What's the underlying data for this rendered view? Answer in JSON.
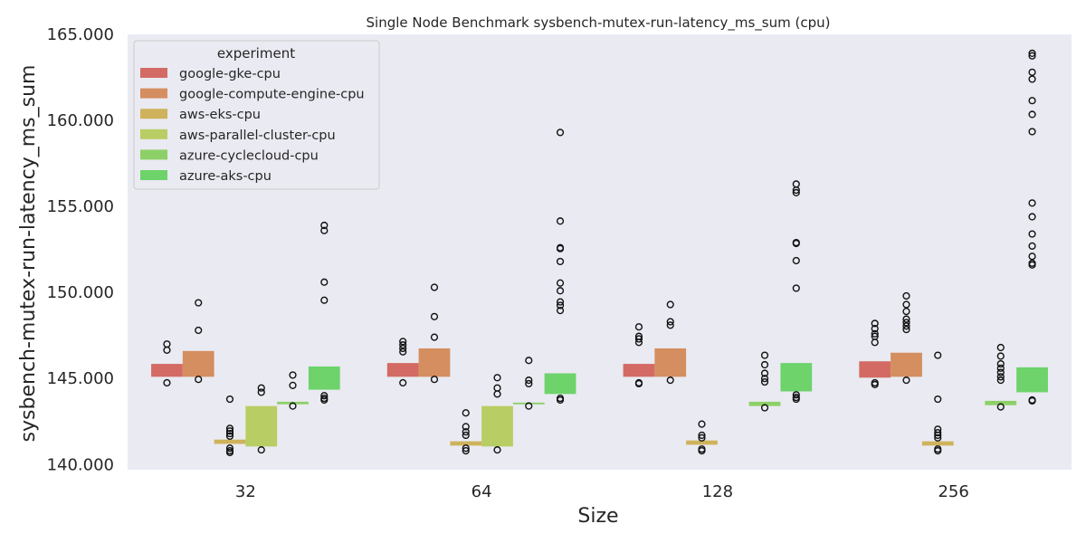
{
  "chart_data": {
    "type": "box",
    "title": "Single Node Benchmark sysbench-mutex-run-latency_ms_sum (cpu)",
    "xlabel": "Size",
    "ylabel": "sysbench-mutex-run-latency_ms_sum",
    "categories": [
      "32",
      "64",
      "128",
      "256"
    ],
    "ylim": [
      139.7,
      165.0
    ],
    "yticks": [
      140.0,
      145.0,
      150.0,
      155.0,
      160.0,
      165.0
    ],
    "ytick_labels": [
      "140.000",
      "145.000",
      "150.000",
      "155.000",
      "160.000",
      "165.000"
    ],
    "grid": false,
    "legend_title": "experiment",
    "legend_position": "top-left",
    "series": [
      {
        "name": "google-gke-cpu",
        "color": "#d36b64",
        "boxes": [
          {
            "q1": 145.1,
            "q3": 145.85,
            "outliers": [
              147.0,
              146.65,
              144.75
            ]
          },
          {
            "q1": 145.1,
            "q3": 145.9,
            "outliers": [
              147.15,
              146.95,
              146.75,
              146.55,
              144.75
            ]
          },
          {
            "q1": 145.1,
            "q3": 145.85,
            "outliers": [
              148.0,
              147.45,
              147.3,
              147.1,
              144.75,
              144.7
            ]
          },
          {
            "q1": 145.05,
            "q3": 146.0,
            "outliers": [
              148.2,
              147.9,
              147.6,
              147.45,
              147.1,
              144.75,
              144.65
            ]
          }
        ]
      },
      {
        "name": "google-compute-engine-cpu",
        "color": "#d58e5f",
        "boxes": [
          {
            "q1": 145.1,
            "q3": 146.6,
            "outliers": [
              149.4,
              147.8,
              144.95
            ]
          },
          {
            "q1": 145.1,
            "q3": 146.75,
            "outliers": [
              150.3,
              148.6,
              147.4,
              144.95
            ]
          },
          {
            "q1": 145.1,
            "q3": 146.75,
            "outliers": [
              149.3,
              148.3,
              148.1,
              144.9
            ]
          },
          {
            "q1": 145.1,
            "q3": 146.5,
            "outliers": [
              149.8,
              149.3,
              148.9,
              148.45,
              148.25,
              148.05,
              147.85,
              144.9
            ]
          }
        ]
      },
      {
        "name": "aws-eks-cpu",
        "color": "#cfb35c",
        "boxes": [
          {
            "q1": 141.2,
            "q3": 141.45,
            "outliers": [
              143.8,
              142.1,
              141.95,
              141.8,
              141.65,
              140.95,
              140.8,
              140.7
            ]
          },
          {
            "q1": 141.1,
            "q3": 141.35,
            "outliers": [
              143.0,
              142.2,
              141.9,
              141.7,
              140.95,
              140.8
            ]
          },
          {
            "q1": 141.15,
            "q3": 141.4,
            "outliers": [
              142.35,
              141.7,
              141.55,
              140.9,
              140.8
            ]
          },
          {
            "q1": 141.1,
            "q3": 141.35,
            "outliers": [
              146.35,
              143.8,
              142.05,
              141.85,
              141.7,
              141.55,
              140.9,
              140.8
            ]
          }
        ]
      },
      {
        "name": "aws-parallel-cluster-cpu",
        "color": "#b8cd63",
        "boxes": [
          {
            "q1": 141.05,
            "q3": 143.4,
            "outliers": [
              144.45,
              144.2,
              140.85
            ]
          },
          {
            "q1": 141.05,
            "q3": 143.4,
            "outliers": [
              145.05,
              144.45,
              144.1,
              140.85
            ]
          },
          null,
          null
        ]
      },
      {
        "name": "azure-cyclecloud-cpu",
        "color": "#8dd068",
        "boxes": [
          {
            "q1": 143.5,
            "q3": 143.65,
            "outliers": [
              145.2,
              144.6,
              143.4
            ]
          },
          {
            "q1": 143.5,
            "q3": 143.6,
            "outliers": [
              146.05,
              144.9,
              144.7,
              143.4
            ]
          },
          {
            "q1": 143.4,
            "q3": 143.65,
            "outliers": [
              146.35,
              145.8,
              145.3,
              145.0,
              144.8,
              143.3
            ]
          },
          {
            "q1": 143.45,
            "q3": 143.7,
            "outliers": [
              146.8,
              146.3,
              145.85,
              145.6,
              145.35,
              145.1,
              144.9,
              143.35
            ]
          }
        ]
      },
      {
        "name": "azure-aks-cpu",
        "color": "#6dd36a",
        "boxes": [
          {
            "q1": 144.35,
            "q3": 145.7,
            "outliers": [
              153.9,
              153.6,
              150.6,
              149.55,
              144.0,
              143.85,
              143.75
            ]
          },
          {
            "q1": 144.1,
            "q3": 145.3,
            "outliers": [
              159.3,
              154.15,
              152.6,
              152.55,
              151.8,
              150.55,
              150.1,
              149.45,
              149.25,
              148.95,
              143.85,
              143.75
            ]
          },
          {
            "q1": 144.25,
            "q3": 145.9,
            "outliers": [
              156.3,
              155.95,
              155.8,
              152.9,
              152.85,
              151.85,
              150.25,
              144.05,
              143.9,
              143.8
            ]
          },
          {
            "q1": 144.2,
            "q3": 145.65,
            "outliers": [
              163.9,
              163.75,
              162.8,
              162.4,
              161.15,
              160.35,
              159.35,
              155.2,
              154.4,
              153.4,
              152.7,
              152.1,
              151.7,
              151.6,
              143.75,
              143.7
            ]
          }
        ]
      }
    ]
  }
}
